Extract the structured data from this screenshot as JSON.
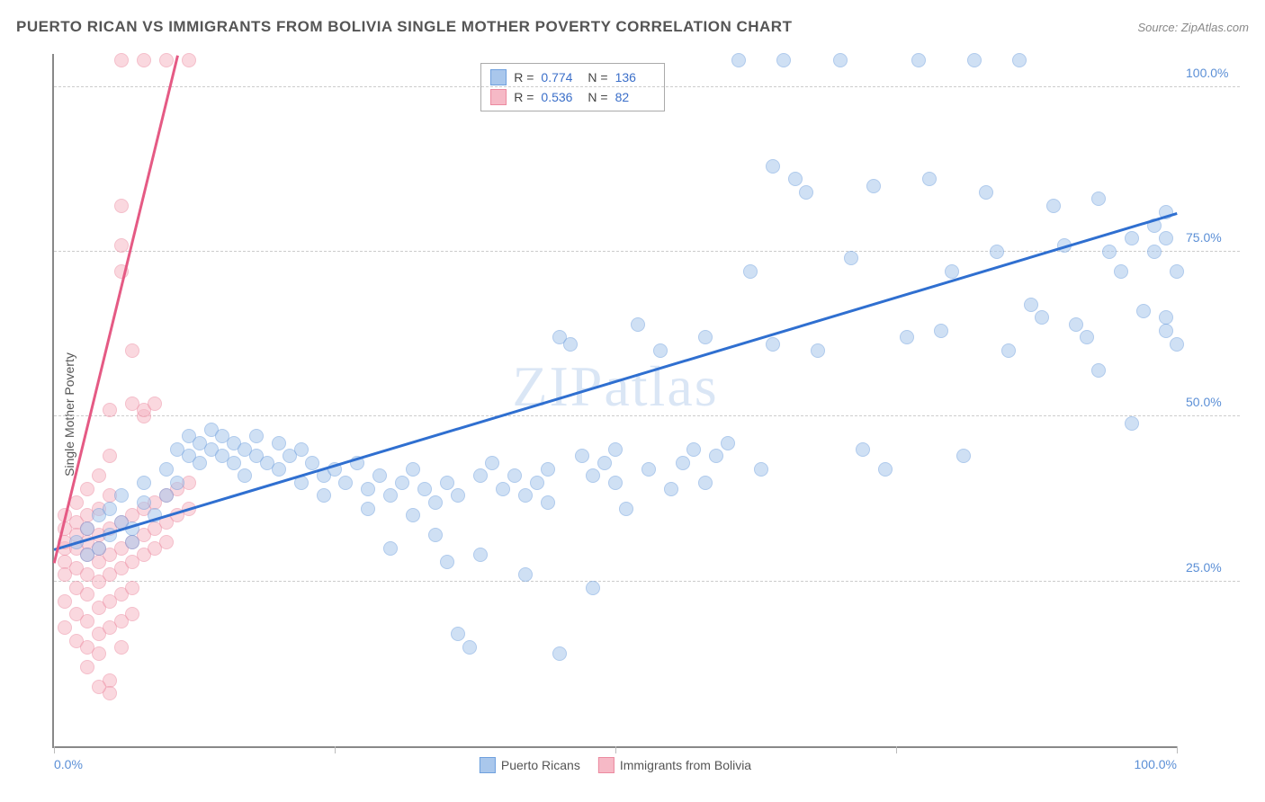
{
  "header": {
    "title": "PUERTO RICAN VS IMMIGRANTS FROM BOLIVIA SINGLE MOTHER POVERTY CORRELATION CHART",
    "source_prefix": "Source: ",
    "source_name": "ZipAtlas.com"
  },
  "chart": {
    "type": "scatter",
    "ylabel": "Single Mother Poverty",
    "watermark": "ZIPatlas",
    "background_color": "#ffffff",
    "grid_color": "#cccccc",
    "axis_color": "#888888",
    "tick_label_color": "#5b8fd6",
    "xlim": [
      0,
      100
    ],
    "ylim": [
      0,
      105
    ],
    "xticks": [
      0,
      50,
      100
    ],
    "xtick_labels": [
      "0.0%",
      "",
      "100.0%"
    ],
    "xtick_minor": [
      25,
      75
    ],
    "yticks": [
      25,
      50,
      75,
      100
    ],
    "ytick_labels": [
      "25.0%",
      "50.0%",
      "75.0%",
      "100.0%"
    ],
    "marker_radius": 8,
    "marker_opacity": 0.55,
    "series": [
      {
        "name": "Puerto Ricans",
        "fill_color": "#a9c7ec",
        "stroke_color": "#6fa0de",
        "trend_color": "#2f6fd0",
        "trend": {
          "x1": 0,
          "y1": 30,
          "x2": 100,
          "y2": 81
        },
        "R": "0.774",
        "N": "136",
        "points": [
          [
            2,
            31
          ],
          [
            3,
            33
          ],
          [
            3,
            29
          ],
          [
            4,
            35
          ],
          [
            4,
            30
          ],
          [
            5,
            32
          ],
          [
            5,
            36
          ],
          [
            6,
            34
          ],
          [
            6,
            38
          ],
          [
            7,
            33
          ],
          [
            7,
            31
          ],
          [
            8,
            37
          ],
          [
            8,
            40
          ],
          [
            9,
            35
          ],
          [
            10,
            42
          ],
          [
            10,
            38
          ],
          [
            11,
            45
          ],
          [
            11,
            40
          ],
          [
            12,
            44
          ],
          [
            12,
            47
          ],
          [
            13,
            43
          ],
          [
            13,
            46
          ],
          [
            14,
            45
          ],
          [
            14,
            48
          ],
          [
            15,
            44
          ],
          [
            15,
            47
          ],
          [
            16,
            46
          ],
          [
            16,
            43
          ],
          [
            17,
            45
          ],
          [
            17,
            41
          ],
          [
            18,
            44
          ],
          [
            18,
            47
          ],
          [
            19,
            43
          ],
          [
            20,
            46
          ],
          [
            20,
            42
          ],
          [
            21,
            44
          ],
          [
            22,
            45
          ],
          [
            22,
            40
          ],
          [
            23,
            43
          ],
          [
            24,
            41
          ],
          [
            24,
            38
          ],
          [
            25,
            42
          ],
          [
            26,
            40
          ],
          [
            27,
            43
          ],
          [
            28,
            39
          ],
          [
            28,
            36
          ],
          [
            29,
            41
          ],
          [
            30,
            38
          ],
          [
            30,
            30
          ],
          [
            31,
            40
          ],
          [
            32,
            42
          ],
          [
            32,
            35
          ],
          [
            33,
            39
          ],
          [
            34,
            37
          ],
          [
            34,
            32
          ],
          [
            35,
            40
          ],
          [
            35,
            28
          ],
          [
            36,
            38
          ],
          [
            36,
            17
          ],
          [
            37,
            15
          ],
          [
            38,
            29
          ],
          [
            38,
            41
          ],
          [
            39,
            43
          ],
          [
            40,
            39
          ],
          [
            41,
            41
          ],
          [
            42,
            26
          ],
          [
            42,
            38
          ],
          [
            43,
            40
          ],
          [
            44,
            37
          ],
          [
            44,
            42
          ],
          [
            45,
            14
          ],
          [
            45,
            62
          ],
          [
            46,
            61
          ],
          [
            47,
            44
          ],
          [
            48,
            24
          ],
          [
            48,
            41
          ],
          [
            49,
            43
          ],
          [
            50,
            45
          ],
          [
            50,
            40
          ],
          [
            51,
            36
          ],
          [
            52,
            64
          ],
          [
            53,
            42
          ],
          [
            54,
            60
          ],
          [
            55,
            39
          ],
          [
            56,
            43
          ],
          [
            57,
            45
          ],
          [
            58,
            62
          ],
          [
            58,
            40
          ],
          [
            59,
            44
          ],
          [
            60,
            46
          ],
          [
            61,
            104
          ],
          [
            62,
            72
          ],
          [
            63,
            42
          ],
          [
            64,
            61
          ],
          [
            64,
            88
          ],
          [
            65,
            104
          ],
          [
            66,
            86
          ],
          [
            67,
            84
          ],
          [
            68,
            60
          ],
          [
            70,
            104
          ],
          [
            71,
            74
          ],
          [
            72,
            45
          ],
          [
            73,
            85
          ],
          [
            74,
            42
          ],
          [
            76,
            62
          ],
          [
            77,
            104
          ],
          [
            78,
            86
          ],
          [
            79,
            63
          ],
          [
            80,
            72
          ],
          [
            81,
            44
          ],
          [
            82,
            104
          ],
          [
            83,
            84
          ],
          [
            84,
            75
          ],
          [
            85,
            60
          ],
          [
            86,
            104
          ],
          [
            87,
            67
          ],
          [
            88,
            65
          ],
          [
            89,
            82
          ],
          [
            90,
            76
          ],
          [
            91,
            64
          ],
          [
            92,
            62
          ],
          [
            93,
            83
          ],
          [
            93,
            57
          ],
          [
            94,
            75
          ],
          [
            95,
            72
          ],
          [
            96,
            77
          ],
          [
            96,
            49
          ],
          [
            97,
            66
          ],
          [
            98,
            79
          ],
          [
            98,
            75
          ],
          [
            99,
            81
          ],
          [
            99,
            77
          ],
          [
            99,
            65
          ],
          [
            99,
            63
          ],
          [
            100,
            72
          ],
          [
            100,
            61
          ]
        ]
      },
      {
        "name": "Immigrants from Bolivia",
        "fill_color": "#f6b9c6",
        "stroke_color": "#ec8aa0",
        "trend_color": "#e55a84",
        "trend": {
          "x1": 0,
          "y1": 28,
          "x2": 11,
          "y2": 105
        },
        "R": "0.536",
        "N": "82",
        "points": [
          [
            1,
            30
          ],
          [
            1,
            28
          ],
          [
            1,
            33
          ],
          [
            1,
            26
          ],
          [
            1,
            35
          ],
          [
            1,
            31
          ],
          [
            1,
            22
          ],
          [
            1,
            18
          ],
          [
            2,
            30
          ],
          [
            2,
            27
          ],
          [
            2,
            34
          ],
          [
            2,
            32
          ],
          [
            2,
            24
          ],
          [
            2,
            20
          ],
          [
            2,
            16
          ],
          [
            2,
            37
          ],
          [
            3,
            31
          ],
          [
            3,
            29
          ],
          [
            3,
            33
          ],
          [
            3,
            26
          ],
          [
            3,
            35
          ],
          [
            3,
            23
          ],
          [
            3,
            19
          ],
          [
            3,
            15
          ],
          [
            3,
            39
          ],
          [
            4,
            32
          ],
          [
            4,
            28
          ],
          [
            4,
            30
          ],
          [
            4,
            25
          ],
          [
            4,
            21
          ],
          [
            4,
            17
          ],
          [
            4,
            14
          ],
          [
            4,
            36
          ],
          [
            4,
            41
          ],
          [
            5,
            33
          ],
          [
            5,
            29
          ],
          [
            5,
            26
          ],
          [
            5,
            22
          ],
          [
            5,
            18
          ],
          [
            5,
            10
          ],
          [
            5,
            8
          ],
          [
            5,
            38
          ],
          [
            5,
            44
          ],
          [
            5,
            51
          ],
          [
            6,
            34
          ],
          [
            6,
            30
          ],
          [
            6,
            27
          ],
          [
            6,
            23
          ],
          [
            6,
            19
          ],
          [
            6,
            15
          ],
          [
            6,
            82
          ],
          [
            6,
            72
          ],
          [
            6,
            76
          ],
          [
            6,
            104
          ],
          [
            7,
            35
          ],
          [
            7,
            31
          ],
          [
            7,
            28
          ],
          [
            7,
            24
          ],
          [
            7,
            20
          ],
          [
            7,
            60
          ],
          [
            7,
            52
          ],
          [
            8,
            36
          ],
          [
            8,
            32
          ],
          [
            8,
            29
          ],
          [
            8,
            50
          ],
          [
            8,
            51
          ],
          [
            8,
            104
          ],
          [
            9,
            37
          ],
          [
            9,
            33
          ],
          [
            9,
            30
          ],
          [
            9,
            52
          ],
          [
            10,
            38
          ],
          [
            10,
            34
          ],
          [
            10,
            31
          ],
          [
            10,
            104
          ],
          [
            11,
            39
          ],
          [
            11,
            35
          ],
          [
            12,
            40
          ],
          [
            12,
            36
          ],
          [
            12,
            104
          ],
          [
            3,
            12
          ],
          [
            4,
            9
          ]
        ]
      }
    ],
    "legend_bottom": [
      {
        "label": "Puerto Ricans",
        "fill": "#a9c7ec",
        "stroke": "#6fa0de"
      },
      {
        "label": "Immigrants from Bolivia",
        "fill": "#f6b9c6",
        "stroke": "#ec8aa0"
      }
    ]
  }
}
